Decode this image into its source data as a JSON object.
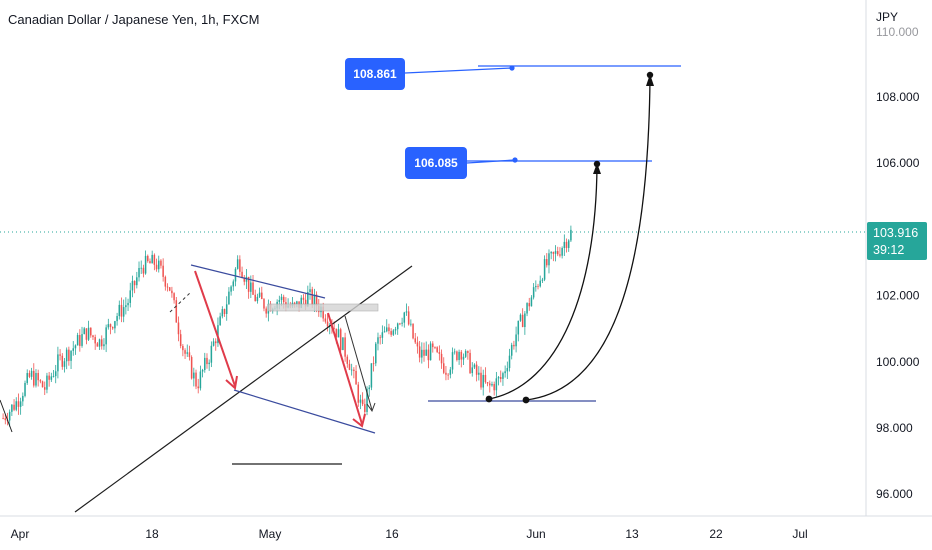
{
  "header": {
    "title": "Canadian Dollar / Japanese Yen, 1h, FXCM"
  },
  "price_axis": {
    "currency": "JPY",
    "ticks": [
      "110.000",
      "108.000",
      "106.000",
      "102.000",
      "100.000",
      "98.000",
      "96.000"
    ]
  },
  "time_axis": {
    "ticks": [
      "Apr",
      "18",
      "May",
      "16",
      "Jun",
      "13",
      "22",
      "Jul"
    ]
  },
  "current_price": {
    "value": "103.916",
    "countdown": "39:12"
  },
  "annotations": [
    {
      "label": "108.861"
    },
    {
      "label": "106.085"
    }
  ],
  "colors": {
    "up": "#26a69a",
    "down": "#ef5350",
    "trendline": "#3a4b9e",
    "target_line": "#2962ff",
    "arrow_red": "#e03b4a",
    "badge": "#2962ff",
    "price_badge": "#26a69a"
  },
  "chart_data": {
    "type": "candlestick",
    "title": "Canadian Dollar / Japanese Yen, 1h, FXCM",
    "y_unit": "JPY",
    "ylim": [
      95.2,
      110.2
    ],
    "x_ticks": [
      "Apr",
      "18",
      "May",
      "16",
      "Jun",
      "13",
      "22",
      "Jul"
    ],
    "price_path": [
      98.3,
      98.8,
      99.6,
      99.2,
      100.0,
      100.4,
      100.9,
      100.6,
      101.3,
      101.8,
      102.9,
      103.0,
      102.3,
      100.4,
      99.3,
      100.3,
      101.6,
      103.1,
      102.0,
      101.7,
      101.9,
      101.6,
      102.0,
      101.6,
      101.0,
      100.0,
      98.4,
      100.6,
      101.0,
      101.5,
      100.2,
      100.3,
      99.8,
      100.4,
      99.7,
      99.2,
      99.5,
      100.8,
      101.8,
      102.8,
      103.3,
      103.9
    ],
    "last_price": 103.916,
    "targets": [
      108.861,
      106.085
    ]
  }
}
